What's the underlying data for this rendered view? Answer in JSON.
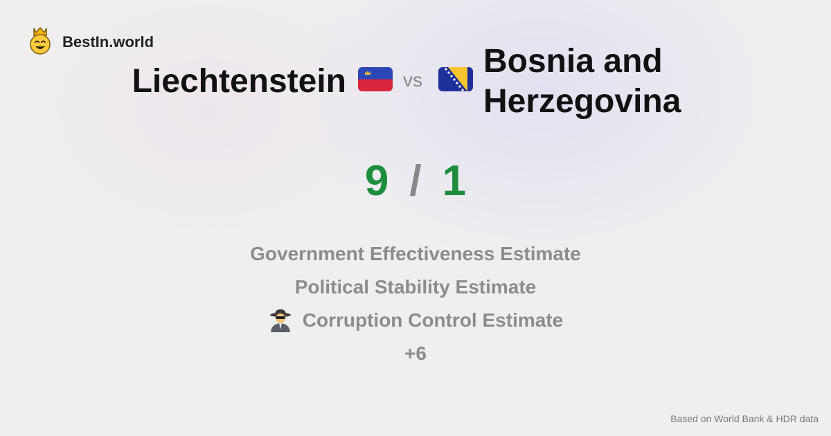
{
  "brand": {
    "name": "BestIn.world",
    "icon": "crown-smiley-icon"
  },
  "comparison": {
    "left_country": "Liechtenstein",
    "right_country": "Bosnia and Herzegovina",
    "vs_label": "vs",
    "left_score": "9",
    "right_score": "1",
    "separator": "/",
    "flags": {
      "left": "liechtenstein-flag-icon",
      "right": "bosnia-flag-icon"
    }
  },
  "metrics": [
    {
      "label": "Government Effectiveness Estimate"
    },
    {
      "label": "Political Stability Estimate"
    },
    {
      "label": "Corruption Control Estimate",
      "icon": "spy-icon"
    }
  ],
  "more_label": "+6",
  "footer": {
    "source": "Based on World Bank & HDR data"
  },
  "colors": {
    "score": "#1e8e3e",
    "muted": "#8c8c8c"
  }
}
